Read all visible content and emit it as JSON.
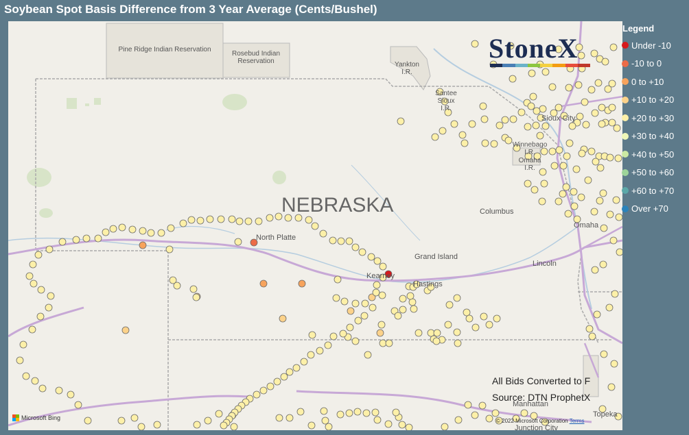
{
  "title": "Soybean Spot Basis Difference from 3 Year Average (Cents/Bushel)",
  "map": {
    "state_label": "NEBRASKA",
    "region_labels": [
      {
        "id": "pine-ridge",
        "text": "Pine Ridge Indian Reservation"
      },
      {
        "id": "rosebud",
        "text": "Rosebud Indian\nReservation"
      },
      {
        "id": "yankton",
        "text": "Yankton\nI.R."
      },
      {
        "id": "santee",
        "text": "Santee\nSioux\nI.R."
      },
      {
        "id": "winnebago",
        "text": "Winnebago\nI.R."
      },
      {
        "id": "omaha-ir",
        "text": "Omaha\nI.R."
      }
    ],
    "cities": [
      {
        "id": "north-platte",
        "name": "North Platte"
      },
      {
        "id": "grand-island",
        "name": "Grand Island"
      },
      {
        "id": "kearney",
        "name": "Kearney"
      },
      {
        "id": "hastings",
        "name": "Hastings"
      },
      {
        "id": "columbus",
        "name": "Columbus"
      },
      {
        "id": "omaha",
        "name": "Omaha"
      },
      {
        "id": "sioux-city",
        "name": "Sioux City"
      },
      {
        "id": "lincoln",
        "name": "Lincoln"
      },
      {
        "id": "manhattan",
        "name": "Manhattan"
      },
      {
        "id": "topeka",
        "name": "Topeka"
      },
      {
        "id": "junction-city",
        "name": "Junction City"
      }
    ],
    "attribution": {
      "bing": "Microsoft Bing",
      "copyright": "© 2022 Microsoft Corporation",
      "terms": "Terms"
    }
  },
  "logo": {
    "text": "StoneX",
    "bar_colors": [
      "#1d2d53",
      "#4a7fb5",
      "#6bb3c9",
      "#8cc63f",
      "#f4d03f",
      "#f39c12",
      "#e74c3c",
      "#c0392b"
    ]
  },
  "notes": {
    "line1": "All Bids Converted to F",
    "line2": "Source: DTN ProphetX"
  },
  "legend": {
    "title": "Legend",
    "items": [
      {
        "label": "Under -10",
        "color": "#d7191c"
      },
      {
        "label": "-10 to 0",
        "color": "#ec6b47"
      },
      {
        "label": "0 to +10",
        "color": "#f7a35c"
      },
      {
        "label": "+10 to +20",
        "color": "#fcd28a"
      },
      {
        "label": "+20 to +30",
        "color": "#fdf0a8"
      },
      {
        "label": "+30 to +40",
        "color": "#f0f7b8"
      },
      {
        "label": "+40 to +50",
        "color": "#cce9a3"
      },
      {
        "label": "+50 to +60",
        "color": "#9ed49a"
      },
      {
        "label": "+60 to +70",
        "color": "#5ca8a8"
      },
      {
        "label": "Over +70",
        "color": "#2b83ba"
      }
    ]
  },
  "bids": [
    [
      196,
      327,
      2
    ],
    [
      358,
      323,
      1
    ],
    [
      554,
      369,
      0
    ],
    [
      428,
      383,
      2
    ],
    [
      372,
      383,
      2
    ],
    [
      400,
      434,
      3
    ],
    [
      171,
      451,
      3
    ],
    [
      275,
      402,
      3
    ],
    [
      530,
      403,
      3
    ],
    [
      499,
      423,
      3
    ],
    [
      542,
      455,
      3
    ],
    [
      235,
      333,
      4
    ],
    [
      335,
      322,
      4
    ],
    [
      480,
      377,
      4
    ],
    [
      274,
      403,
      4
    ],
    [
      240,
      378,
      4
    ],
    [
      246,
      386,
      4
    ],
    [
      270,
      391,
      4
    ],
    [
      478,
      404,
      4
    ],
    [
      490,
      409,
      4
    ],
    [
      506,
      412,
      4
    ],
    [
      520,
      412,
      4
    ],
    [
      575,
      405,
      4
    ],
    [
      584,
      387,
      4
    ],
    [
      590,
      388,
      4
    ],
    [
      595,
      384,
      4
    ],
    [
      611,
      393,
      4
    ],
    [
      616,
      388,
      4
    ],
    [
      643,
      414,
      4
    ],
    [
      654,
      404,
      4
    ],
    [
      589,
      410,
      4
    ],
    [
      586,
      401,
      4
    ],
    [
      575,
      421,
      4
    ],
    [
      443,
      458,
      4
    ],
    [
      591,
      420,
      4
    ],
    [
      620,
      464,
      4
    ],
    [
      641,
      443,
      4
    ],
    [
      655,
      470,
      4
    ],
    [
      616,
      455,
      4
    ],
    [
      625,
      455,
      4
    ],
    [
      632,
      465,
      4
    ],
    [
      624,
      467,
      4
    ],
    [
      524,
      487,
      4
    ],
    [
      495,
      461,
      4
    ],
    [
      506,
      467,
      4
    ],
    [
      544,
      443,
      4
    ],
    [
      563,
      423,
      4
    ],
    [
      546,
      470,
      4
    ],
    [
      555,
      470,
      4
    ],
    [
      568,
      430,
      4
    ],
    [
      598,
      455,
      4
    ],
    [
      668,
      425,
      4
    ],
    [
      672,
      434,
      4
    ],
    [
      681,
      447,
      4
    ],
    [
      693,
      431,
      4
    ],
    [
      701,
      443,
      4
    ],
    [
      712,
      434,
      4
    ],
    [
      654,
      454,
      4
    ],
    [
      680,
      33,
      4
    ],
    [
      707,
      63,
      4
    ],
    [
      732,
      36,
      4
    ],
    [
      775,
      63,
      4
    ],
    [
      802,
      41,
      4
    ],
    [
      819,
      69,
      4
    ],
    [
      835,
      50,
      4
    ],
    [
      862,
      55,
      4
    ],
    [
      832,
      38,
      4
    ],
    [
      854,
      47,
      4
    ],
    [
      882,
      38,
      4
    ],
    [
      870,
      59,
      4
    ],
    [
      836,
      69,
      4
    ],
    [
      850,
      100,
      4
    ],
    [
      860,
      90,
      4
    ],
    [
      874,
      99,
      4
    ],
    [
      880,
      91,
      4
    ],
    [
      783,
      74,
      4
    ],
    [
      763,
      76,
      4
    ],
    [
      735,
      84,
      4
    ],
    [
      793,
      96,
      4
    ],
    [
      817,
      97,
      4
    ],
    [
      831,
      93,
      4
    ],
    [
      840,
      118,
      4
    ],
    [
      855,
      134,
      4
    ],
    [
      865,
      126,
      4
    ],
    [
      874,
      130,
      4
    ],
    [
      880,
      126,
      4
    ],
    [
      870,
      148,
      4
    ],
    [
      880,
      148,
      4
    ],
    [
      887,
      156,
      4
    ],
    [
      865,
      150,
      4
    ],
    [
      842,
      151,
      4
    ],
    [
      833,
      139,
      4
    ],
    [
      829,
      148,
      4
    ],
    [
      810,
      138,
      4
    ],
    [
      802,
      126,
      4
    ],
    [
      779,
      128,
      4
    ],
    [
      765,
      110,
      4
    ],
    [
      756,
      119,
      4
    ],
    [
      762,
      124,
      4
    ],
    [
      770,
      131,
      4
    ],
    [
      776,
      141,
      4
    ],
    [
      748,
      133,
      4
    ],
    [
      736,
      143,
      4
    ],
    [
      724,
      144,
      4
    ],
    [
      716,
      152,
      4
    ],
    [
      757,
      154,
      4
    ],
    [
      769,
      152,
      4
    ],
    [
      775,
      167,
      4
    ],
    [
      783,
      153,
      4
    ],
    [
      795,
      134,
      4
    ],
    [
      822,
      153,
      4
    ],
    [
      839,
      187,
      4
    ],
    [
      836,
      193,
      4
    ],
    [
      850,
      190,
      4
    ],
    [
      861,
      197,
      4
    ],
    [
      856,
      205,
      4
    ],
    [
      863,
      214,
      4
    ],
    [
      869,
      197,
      4
    ],
    [
      877,
      199,
      4
    ],
    [
      889,
      200,
      4
    ],
    [
      845,
      232,
      4
    ],
    [
      835,
      257,
      4
    ],
    [
      824,
      249,
      4
    ],
    [
      808,
      252,
      4
    ],
    [
      813,
      242,
      4
    ],
    [
      825,
      270,
      4
    ],
    [
      692,
      124,
      4
    ],
    [
      694,
      143,
      4
    ],
    [
      676,
      150,
      4
    ],
    [
      641,
      133,
      4
    ],
    [
      636,
      117,
      4
    ],
    [
      629,
      103,
      4
    ],
    [
      572,
      146,
      4
    ],
    [
      622,
      169,
      4
    ],
    [
      633,
      160,
      4
    ],
    [
      650,
      150,
      4
    ],
    [
      662,
      166,
      4
    ],
    [
      665,
      178,
      4
    ],
    [
      695,
      178,
      4
    ],
    [
      708,
      179,
      4
    ],
    [
      724,
      170,
      4
    ],
    [
      729,
      174,
      4
    ],
    [
      741,
      185,
      4
    ],
    [
      758,
      197,
      4
    ],
    [
      771,
      197,
      4
    ],
    [
      781,
      190,
      4
    ],
    [
      793,
      190,
      4
    ],
    [
      803,
      188,
      4
    ],
    [
      818,
      178,
      4
    ],
    [
      814,
      197,
      4
    ],
    [
      828,
      216,
      4
    ],
    [
      809,
      211,
      4
    ],
    [
      796,
      211,
      4
    ],
    [
      779,
      220,
      4
    ],
    [
      781,
      237,
      4
    ],
    [
      757,
      237,
      4
    ],
    [
      767,
      246,
      4
    ],
    [
      778,
      263,
      4
    ],
    [
      802,
      263,
      4
    ],
    [
      816,
      281,
      4
    ],
    [
      829,
      289,
      4
    ],
    [
      854,
      278,
      4
    ],
    [
      862,
      262,
      4
    ],
    [
      867,
      251,
      4
    ],
    [
      886,
      261,
      4
    ],
    [
      877,
      282,
      4
    ],
    [
      890,
      286,
      4
    ],
    [
      868,
      302,
      4
    ],
    [
      882,
      320,
      4
    ],
    [
      891,
      337,
      4
    ],
    [
      867,
      355,
      4
    ],
    [
      855,
      363,
      4
    ],
    [
      884,
      398,
      4
    ],
    [
      876,
      418,
      4
    ],
    [
      858,
      428,
      4
    ],
    [
      847,
      449,
      4
    ],
    [
      851,
      460,
      4
    ],
    [
      868,
      486,
      4
    ],
    [
      883,
      500,
      4
    ],
    [
      879,
      534,
      4
    ],
    [
      866,
      566,
      4
    ],
    [
      889,
      577,
      4
    ],
    [
      856,
      596,
      4
    ],
    [
      842,
      594,
      4
    ],
    [
      813,
      615,
      4
    ],
    [
      800,
      600,
      4
    ],
    [
      782,
      585,
      4
    ],
    [
      766,
      576,
      4
    ],
    [
      752,
      572,
      4
    ],
    [
      740,
      580,
      4
    ],
    [
      730,
      594,
      4
    ],
    [
      715,
      583,
      4
    ],
    [
      710,
      572,
      4
    ],
    [
      701,
      580,
      4
    ],
    [
      691,
      561,
      4
    ],
    [
      680,
      575,
      4
    ],
    [
      670,
      560,
      4
    ],
    [
      656,
      582,
      4
    ],
    [
      636,
      592,
      4
    ],
    [
      620,
      596,
      4
    ],
    [
      614,
      610,
      4
    ],
    [
      598,
      606,
      4
    ],
    [
      584,
      593,
      4
    ],
    [
      574,
      589,
      4
    ],
    [
      569,
      578,
      4
    ],
    [
      565,
      571,
      4
    ],
    [
      554,
      588,
      4
    ],
    [
      538,
      582,
      4
    ],
    [
      535,
      571,
      4
    ],
    [
      522,
      572,
      4
    ],
    [
      509,
      570,
      4
    ],
    [
      497,
      572,
      4
    ],
    [
      484,
      574,
      4
    ],
    [
      467,
      592,
      4
    ],
    [
      462,
      583,
      4
    ],
    [
      460,
      569,
      4
    ],
    [
      442,
      590,
      4
    ],
    [
      426,
      570,
      4
    ],
    [
      410,
      579,
      4
    ],
    [
      395,
      579,
      4
    ],
    [
      379,
      600,
      4
    ],
    [
      356,
      600,
      4
    ],
    [
      344,
      600,
      4
    ],
    [
      329,
      592,
      4
    ],
    [
      327,
      575,
      4
    ],
    [
      307,
      573,
      4
    ],
    [
      291,
      583,
      4
    ],
    [
      275,
      589,
      4
    ],
    [
      262,
      600,
      4
    ],
    [
      246,
      604,
      4
    ],
    [
      229,
      609,
      4
    ],
    [
      217,
      589,
      4
    ],
    [
      194,
      592,
      4
    ],
    [
      184,
      579,
      4
    ],
    [
      165,
      583,
      4
    ],
    [
      174,
      595,
      4
    ],
    [
      148,
      604,
      4
    ],
    [
      130,
      608,
      4
    ],
    [
      116,
      583,
      4
    ],
    [
      102,
      560,
      4
    ],
    [
      91,
      545,
      4
    ],
    [
      74,
      539,
      4
    ],
    [
      50,
      536,
      4
    ],
    [
      39,
      525,
      4
    ],
    [
      26,
      518,
      4
    ],
    [
      17,
      495,
      4
    ],
    [
      22,
      472,
      4
    ],
    [
      35,
      450,
      4
    ],
    [
      47,
      431,
      4
    ],
    [
      59,
      418,
      4
    ],
    [
      62,
      401,
      4
    ],
    [
      48,
      392,
      4
    ],
    [
      37,
      383,
      4
    ],
    [
      31,
      372,
      4
    ],
    [
      36,
      355,
      4
    ],
    [
      44,
      341,
      4
    ],
    [
      60,
      333,
      4
    ],
    [
      79,
      322,
      4
    ],
    [
      99,
      319,
      4
    ],
    [
      114,
      317,
      4
    ],
    [
      131,
      317,
      4
    ],
    [
      142,
      308,
      4
    ],
    [
      153,
      303,
      4
    ],
    [
      166,
      301,
      4
    ],
    [
      181,
      304,
      4
    ],
    [
      196,
      306,
      4
    ],
    [
      208,
      309,
      4
    ],
    [
      223,
      309,
      4
    ],
    [
      237,
      302,
      4
    ],
    [
      255,
      295,
      4
    ],
    [
      267,
      290,
      4
    ],
    [
      280,
      291,
      4
    ],
    [
      294,
      289,
      4
    ],
    [
      310,
      289,
      4
    ],
    [
      326,
      289,
      4
    ],
    [
      337,
      292,
      4
    ],
    [
      350,
      292,
      4
    ],
    [
      365,
      292,
      4
    ],
    [
      381,
      287,
      4
    ],
    [
      394,
      285,
      4
    ],
    [
      408,
      287,
      4
    ],
    [
      423,
      287,
      4
    ],
    [
      438,
      290,
      4
    ],
    [
      447,
      299,
      4
    ],
    [
      459,
      310,
      4
    ],
    [
      473,
      320,
      4
    ],
    [
      485,
      321,
      4
    ],
    [
      497,
      321,
      4
    ],
    [
      506,
      330,
      4
    ],
    [
      516,
      337,
      4
    ],
    [
      529,
      344,
      4
    ],
    [
      538,
      350,
      4
    ],
    [
      546,
      358,
      4
    ],
    [
      546,
      374,
      4
    ],
    [
      537,
      385,
      4
    ],
    [
      536,
      396,
      4
    ],
    [
      545,
      400,
      4
    ],
    [
      531,
      418,
      4
    ],
    [
      519,
      430,
      4
    ],
    [
      510,
      437,
      4
    ],
    [
      498,
      447,
      4
    ],
    [
      488,
      456,
      4
    ],
    [
      474,
      460,
      4
    ],
    [
      466,
      473,
      4
    ],
    [
      454,
      481,
      4
    ],
    [
      441,
      487,
      4
    ],
    [
      431,
      497,
      4
    ],
    [
      420,
      506,
      4
    ],
    [
      410,
      512,
      4
    ],
    [
      402,
      519,
      4
    ],
    [
      392,
      526,
      4
    ],
    [
      382,
      533,
      4
    ],
    [
      372,
      539,
      4
    ],
    [
      362,
      545,
      4
    ],
    [
      352,
      551,
      4
    ],
    [
      346,
      556,
      4
    ],
    [
      340,
      561,
      4
    ],
    [
      335,
      566,
      4
    ],
    [
      330,
      571,
      4
    ],
    [
      326,
      576,
      4
    ],
    [
      322,
      581,
      4
    ],
    [
      318,
      586,
      4
    ],
    [
      314,
      590,
      4
    ],
    [
      309,
      594,
      4
    ],
    [
      303,
      598,
      4
    ],
    [
      297,
      602,
      4
    ],
    [
      291,
      606,
      4
    ],
    [
      285,
      608,
      4
    ],
    [
      279,
      612,
      4
    ],
    [
      273,
      615,
      4
    ],
    [
      267,
      617,
      4
    ],
    [
      261,
      619,
      4
    ],
    [
      255,
      621,
      4
    ],
    [
      249,
      623,
      4
    ],
    [
      243,
      625,
      4
    ],
    [
      237,
      627,
      4
    ],
    [
      231,
      628,
      4
    ],
    [
      225,
      629,
      4
    ],
    [
      219,
      630,
      4
    ],
    [
      213,
      631,
      4
    ],
    [
      207,
      632,
      4
    ],
    [
      201,
      633,
      4
    ],
    [
      195,
      634,
      4
    ],
    [
      189,
      635,
      4
    ],
    [
      183,
      636,
      4
    ],
    [
      177,
      637,
      4
    ],
    [
      171,
      638,
      4
    ],
    [
      165,
      639,
      4
    ],
    [
      159,
      640,
      4
    ],
    [
      153,
      641,
      4
    ],
    [
      147,
      642,
      4
    ],
    [
      141,
      643,
      4
    ],
    [
      135,
      644,
      4
    ],
    [
      129,
      645,
      4
    ],
    [
      123,
      646,
      4
    ],
    [
      117,
      647,
      4
    ],
    [
      111,
      648,
      4
    ],
    [
      105,
      649,
      4
    ],
    [
      99,
      650,
      4
    ],
    [
      93,
      651,
      4
    ],
    [
      87,
      652,
      4
    ],
    [
      81,
      653,
      4
    ],
    [
      75,
      654,
      4
    ],
    [
      69,
      655,
      4
    ],
    [
      63,
      656,
      4
    ],
    [
      57,
      657,
      4
    ],
    [
      51,
      658,
      4
    ],
    [
      45,
      659,
      4
    ],
    [
      39,
      660,
      4
    ],
    [
      33,
      661,
      4
    ],
    [
      27,
      662,
      4
    ],
    [
      21,
      663,
      4
    ],
    [
      15,
      664,
      4
    ],
    [
      9,
      665,
      4
    ],
    [
      3,
      666,
      4
    ],
    [
      -3,
      667,
      4
    ],
    [
      -9,
      668,
      4
    ],
    [
      -15,
      669,
      4
    ]
  ]
}
